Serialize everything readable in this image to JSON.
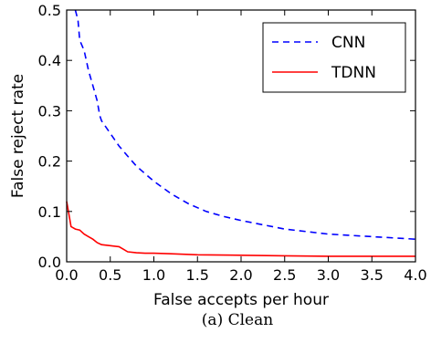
{
  "chart_data": {
    "type": "line",
    "xlabel": "False accepts per hour",
    "ylabel": "False reject rate",
    "caption": "(a) Clean",
    "xlim": [
      0.0,
      4.0
    ],
    "ylim": [
      0.0,
      0.5
    ],
    "xticks": [
      "0.0",
      "0.5",
      "1.0",
      "1.5",
      "2.0",
      "2.5",
      "3.0",
      "3.5",
      "4.0"
    ],
    "yticks": [
      "0.0",
      "0.1",
      "0.2",
      "0.3",
      "0.4",
      "0.5"
    ],
    "grid": false,
    "legend_position": "top-right",
    "series": [
      {
        "name": "CNN",
        "color": "#0000ff",
        "style": "dashed",
        "x": [
          0.1,
          0.13,
          0.15,
          0.2,
          0.25,
          0.3,
          0.35,
          0.38,
          0.4,
          0.5,
          0.6,
          0.7,
          0.8,
          0.9,
          1.0,
          1.2,
          1.4,
          1.6,
          1.8,
          2.0,
          2.5,
          3.0,
          3.5,
          4.0
        ],
        "y": [
          0.5,
          0.48,
          0.44,
          0.42,
          0.38,
          0.35,
          0.32,
          0.29,
          0.28,
          0.255,
          0.23,
          0.21,
          0.19,
          0.175,
          0.16,
          0.135,
          0.115,
          0.1,
          0.09,
          0.082,
          0.065,
          0.055,
          0.05,
          0.045
        ]
      },
      {
        "name": "TDNN",
        "color": "#ff0000",
        "style": "solid",
        "x": [
          0.0,
          0.03,
          0.05,
          0.1,
          0.15,
          0.2,
          0.25,
          0.3,
          0.35,
          0.4,
          0.5,
          0.6,
          0.65,
          0.7,
          0.8,
          0.9,
          1.0,
          1.2,
          1.5,
          2.0,
          2.5,
          3.0,
          3.5,
          4.0
        ],
        "y": [
          0.12,
          0.09,
          0.07,
          0.065,
          0.063,
          0.055,
          0.05,
          0.045,
          0.038,
          0.034,
          0.032,
          0.03,
          0.025,
          0.02,
          0.018,
          0.017,
          0.017,
          0.016,
          0.014,
          0.013,
          0.012,
          0.011,
          0.011,
          0.011
        ]
      }
    ]
  }
}
